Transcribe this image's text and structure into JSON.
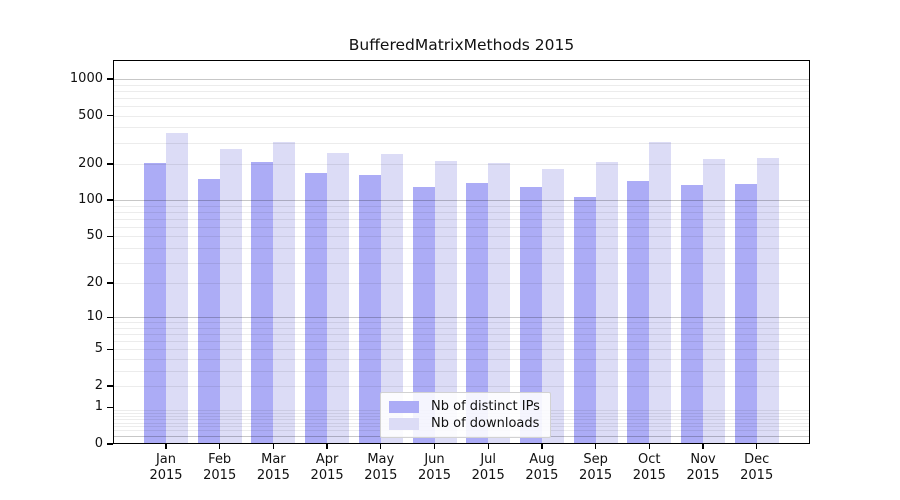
{
  "title": "BufferedMatrixMethods 2015",
  "chart_data": {
    "type": "bar",
    "title": "BufferedMatrixMethods 2015",
    "categories": [
      "Jan",
      "Feb",
      "Mar",
      "Apr",
      "May",
      "Jun",
      "Jul",
      "Aug",
      "Sep",
      "Oct",
      "Nov",
      "Dec"
    ],
    "category_subline": "2015",
    "series": [
      {
        "name": "Nb of distinct IPs",
        "color": "#acacf6",
        "values": [
          202,
          151,
          207,
          168,
          161,
          128,
          138,
          129,
          106,
          144,
          134,
          135
        ]
      },
      {
        "name": "Nb of downloads",
        "color": "#dcdcf6",
        "values": [
          357,
          264,
          301,
          245,
          240,
          211,
          205,
          182,
          206,
          302,
          219,
          222
        ]
      }
    ],
    "scale": "log1p",
    "ylim": [
      0,
      1434
    ],
    "y_ticks": [
      1000,
      500,
      200,
      100,
      50,
      20,
      10,
      5,
      2,
      1,
      0
    ],
    "major_gridlines": [
      1000,
      100,
      10,
      0.17
    ],
    "minor_gridlines": [
      900,
      800,
      700,
      600,
      500,
      400,
      300,
      200,
      90,
      80,
      70,
      60,
      50,
      40,
      30,
      20,
      9,
      8,
      7,
      6,
      5,
      4,
      3,
      2,
      0.9,
      0.8,
      0.7,
      0.6,
      0.5,
      0.4,
      0.3
    ],
    "grid": true,
    "legend_position": "bottom-center",
    "xlabel": "",
    "ylabel": ""
  }
}
